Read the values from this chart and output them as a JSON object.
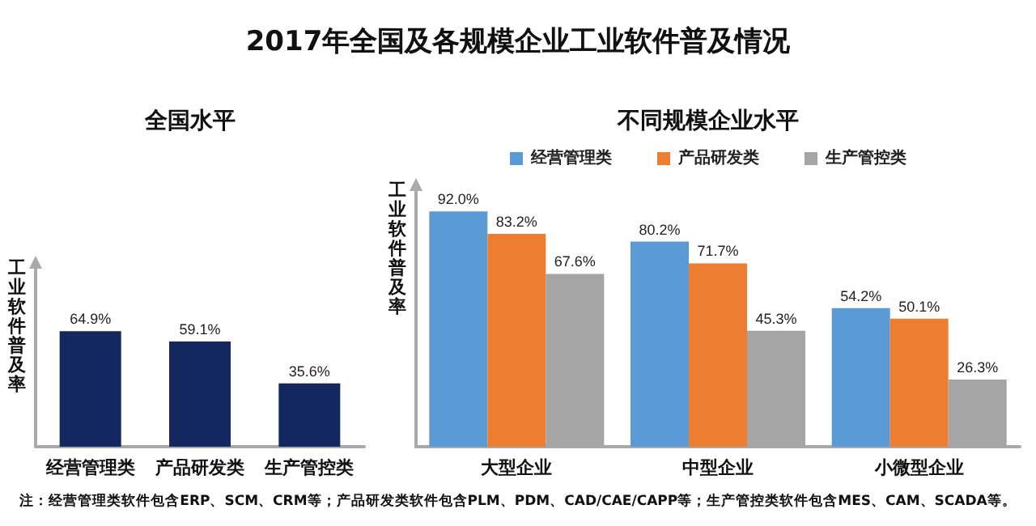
{
  "chart_data": [
    {
      "type": "bar",
      "title": "2017年全国及各规模企业工业软件普及情况",
      "subtitle": "全国水平",
      "ylabel": "工业软件普及率",
      "categories": [
        "经营管理类",
        "产品研发类",
        "生产管控类"
      ],
      "series": [
        {
          "color": "#13285f",
          "values": [
            64.9,
            59.1,
            35.6
          ],
          "value_labels": [
            "64.9%",
            "59.1%",
            "35.6%"
          ]
        }
      ],
      "ylim": [
        0,
        100
      ],
      "tick_labels": "x",
      "grid": false,
      "legend": false
    },
    {
      "type": "bar",
      "title": "不同规模企业水平",
      "ylabel": "工业软件普及率",
      "categories": [
        "大型企业",
        "中型企业",
        "小微型企业"
      ],
      "series": [
        {
          "name": "经营管理类",
          "color": "#5b9bd5",
          "values": [
            92.0,
            80.2,
            54.2
          ],
          "value_labels": [
            "92.0%",
            "80.2%",
            "54.2%"
          ]
        },
        {
          "name": "产品研发类",
          "color": "#ed7d31",
          "values": [
            83.2,
            71.7,
            50.1
          ],
          "value_labels": [
            "83.2%",
            "71.7%",
            "50.1%"
          ]
        },
        {
          "name": "生产管控类",
          "color": "#a5a5a5",
          "values": [
            67.6,
            45.3,
            26.3
          ],
          "value_labels": [
            "67.6%",
            "45.3%",
            "26.3%"
          ]
        }
      ],
      "ylim": [
        0,
        100
      ],
      "tick_labels": "x",
      "grid": false,
      "legend": "top",
      "annotations": [
        "注：经营管理类软件包含ERP、SCM、CRM等；产品研发类软件包含PLM、PDM、CAD/CAE/CAPP等；生产管控类软件包含MES、CAM、SCADA等。"
      ]
    }
  ]
}
